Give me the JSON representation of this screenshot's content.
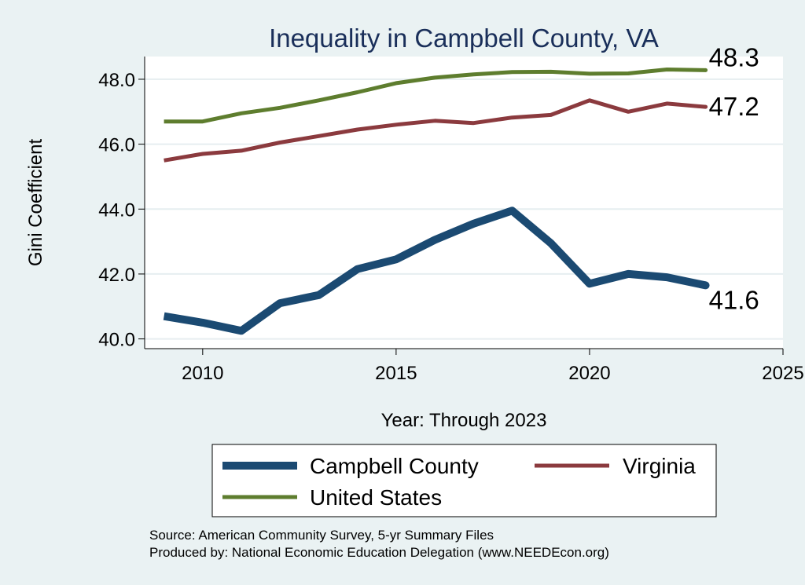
{
  "chart_data": {
    "type": "line",
    "title": "Inequality in Campbell County, VA",
    "xlabel": "Year: Through 2023",
    "ylabel": "Gini Coefficient",
    "xlim": [
      2008.5,
      2025
    ],
    "ylim": [
      39.7,
      48.7
    ],
    "x_ticks": [
      2010,
      2015,
      2020,
      2025
    ],
    "y_ticks": [
      40.0,
      42.0,
      44.0,
      46.0,
      48.0
    ],
    "y_tick_labels": [
      "40.0",
      "42.0",
      "44.0",
      "46.0",
      "48.0"
    ],
    "grid": true,
    "legend_position": "bottom",
    "x": [
      2009,
      2010,
      2011,
      2012,
      2013,
      2014,
      2015,
      2016,
      2017,
      2018,
      2019,
      2020,
      2021,
      2022,
      2023
    ],
    "series": [
      {
        "name": "Campbell County",
        "color": "#1b4a72",
        "line_width": 10,
        "end_label": "41.6",
        "values": [
          40.7,
          40.5,
          40.25,
          41.1,
          41.35,
          42.15,
          42.45,
          43.05,
          43.55,
          43.95,
          42.95,
          41.7,
          42.0,
          41.9,
          41.65
        ]
      },
      {
        "name": "Virginia",
        "color": "#8b3a3e",
        "line_width": 5,
        "end_label": "47.2",
        "values": [
          45.5,
          45.7,
          45.8,
          46.05,
          46.25,
          46.45,
          46.6,
          46.72,
          46.65,
          46.82,
          46.9,
          47.35,
          47.0,
          47.25,
          47.15
        ]
      },
      {
        "name": "United States",
        "color": "#5e7d2e",
        "line_width": 5,
        "end_label": "48.3",
        "values": [
          46.7,
          46.7,
          46.95,
          47.12,
          47.35,
          47.6,
          47.88,
          48.05,
          48.15,
          48.22,
          48.23,
          48.17,
          48.18,
          48.3,
          48.28
        ]
      }
    ]
  },
  "source_lines": [
    "Source: American Community Survey, 5-yr Summary Files",
    "Produced by: National Economic Education Delegation (www.NEEDEcon.org)"
  ]
}
